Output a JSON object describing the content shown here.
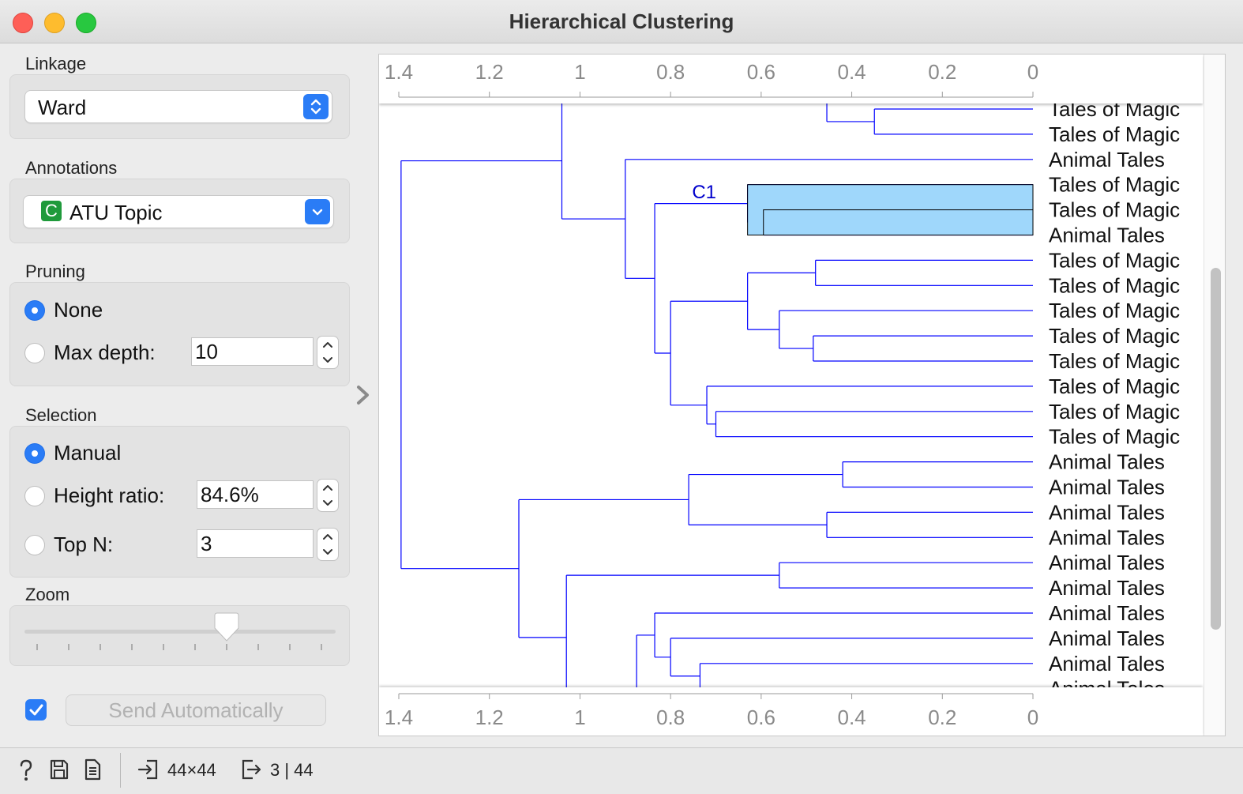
{
  "window": {
    "title": "Hierarchical Clustering"
  },
  "linkage": {
    "label": "Linkage",
    "value": "Ward"
  },
  "annotations": {
    "label": "Annotations",
    "badge": "C",
    "value": "ATU Topic"
  },
  "pruning": {
    "label": "Pruning",
    "selected": "None",
    "options": {
      "none": "None",
      "max_depth": "Max depth:"
    },
    "max_depth_value": "10"
  },
  "selection": {
    "label": "Selection",
    "selected": "Manual",
    "options": {
      "manual": "Manual",
      "height_ratio": "Height ratio:",
      "top_n": "Top N:"
    },
    "height_ratio_value": "84.6%",
    "top_n_value": "3"
  },
  "zoom": {
    "label": "Zoom",
    "level": 0.65
  },
  "send": {
    "checked": true,
    "label": "Send Automatically"
  },
  "status": {
    "input_size": "44×44",
    "output_size": "3 | 44"
  },
  "icons": {
    "help": "help-icon",
    "save": "save-icon",
    "report": "report-icon",
    "input": "input-icon",
    "output": "output-icon",
    "collapse": "chevron-right-icon"
  },
  "colors": {
    "dendrogram": "#0000ff",
    "selection_fill": "#9fd7fb",
    "accent": "#2a7cf6"
  },
  "chart_data": {
    "type": "dendrogram",
    "axis_ticks": [
      "1.4",
      "1.2",
      "1",
      "0.8",
      "0.6",
      "0.4",
      "0.2",
      "0"
    ],
    "xlim": [
      1.4,
      0
    ],
    "cluster_label": "C1",
    "leaf_labels": [
      "Tales of Magic",
      "Tales of Magic",
      "Animal Tales",
      "Tales of Magic",
      "Tales of Magic",
      "Animal Tales",
      "Tales of Magic",
      "Tales of Magic",
      "Tales of Magic",
      "Tales of Magic",
      "Tales of Magic",
      "Tales of Magic",
      "Tales of Magic",
      "Tales of Magic",
      "Animal Tales",
      "Animal Tales",
      "Animal Tales",
      "Animal Tales",
      "Animal Tales",
      "Animal Tales",
      "Animal Tales",
      "Animal Tales",
      "Animal Tales",
      "Animal Tales"
    ]
  }
}
